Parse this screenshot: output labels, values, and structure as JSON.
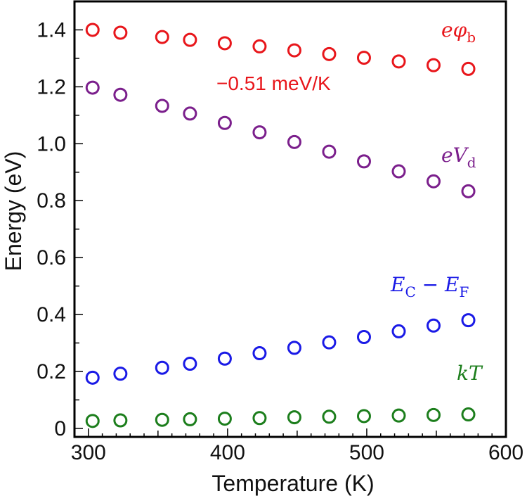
{
  "chart_data": {
    "type": "scatter",
    "title": "",
    "xlabel": "Temperature (K)",
    "ylabel": "Energy (eV)",
    "xlim": [
      290,
      600
    ],
    "ylim": [
      -0.03,
      1.5
    ],
    "x_ticks": [
      300,
      400,
      500,
      600
    ],
    "y_ticks": [
      0,
      0.2,
      0.4,
      0.6,
      0.8,
      1.0,
      1.2,
      1.4
    ],
    "x_tick_labels": [
      "300",
      "400",
      "500",
      "600"
    ],
    "y_tick_labels": [
      "0",
      "0.2",
      "0.4",
      "0.6",
      "0.8",
      "1.0",
      "1.2",
      "1.4"
    ],
    "grid": false,
    "marker": "open-circle",
    "x": [
      303,
      323,
      353,
      373,
      398,
      423,
      448,
      473,
      498,
      523,
      548,
      573
    ],
    "series": [
      {
        "name": "eφb",
        "label_main": "eφ",
        "label_sub": "b",
        "color": "#e8161b",
        "values": [
          1.4,
          1.39,
          1.375,
          1.365,
          1.353,
          1.342,
          1.328,
          1.315,
          1.302,
          1.289,
          1.276,
          1.263
        ]
      },
      {
        "name": "eVd",
        "label_main": "eV",
        "label_sub": "d",
        "color": "#7b1f8c",
        "values": [
          1.197,
          1.172,
          1.133,
          1.106,
          1.073,
          1.04,
          1.006,
          0.972,
          0.938,
          0.903,
          0.868,
          0.833
        ]
      },
      {
        "name": "EC − EF",
        "label_main": "E",
        "label_sub": "C",
        "label_mid": " − E",
        "label_sub2": "F",
        "color": "#1a1ae6",
        "values": [
          0.178,
          0.192,
          0.213,
          0.227,
          0.245,
          0.264,
          0.283,
          0.302,
          0.321,
          0.341,
          0.361,
          0.38
        ]
      },
      {
        "name": "kT",
        "label_main": "kT",
        "color": "#1c7e1c",
        "values": [
          0.026,
          0.028,
          0.03,
          0.032,
          0.034,
          0.036,
          0.039,
          0.041,
          0.043,
          0.045,
          0.047,
          0.049
        ]
      }
    ],
    "annotations": [
      {
        "text": "−0.51 meV/K",
        "color": "#e8161b"
      }
    ]
  }
}
